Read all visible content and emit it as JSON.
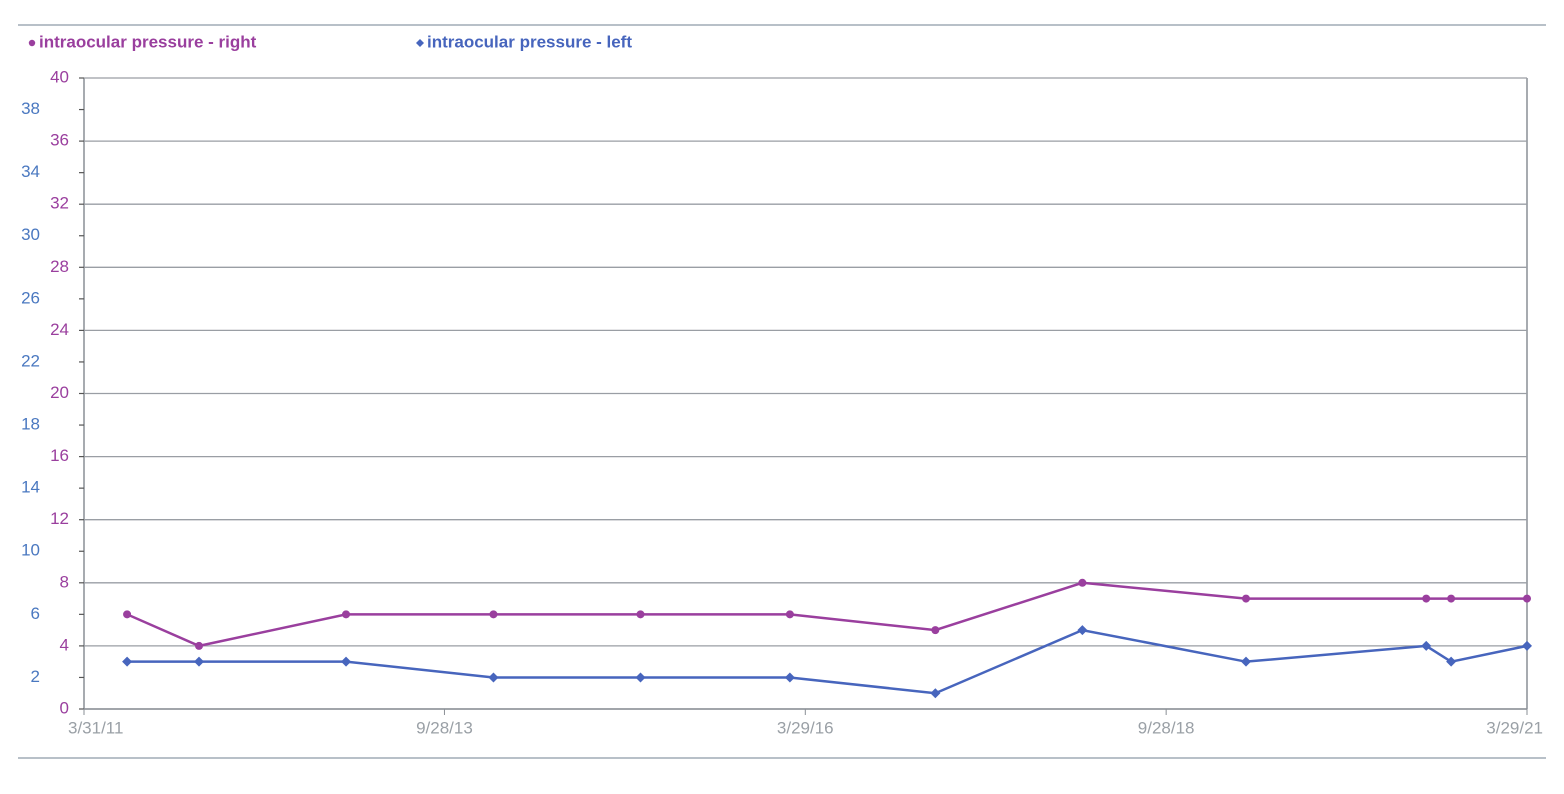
{
  "chart_data": {
    "type": "line",
    "x": [
      "7/18/11",
      "1/16/12",
      "1/22/13",
      "1/30/14",
      "2/6/15",
      "2/19/16",
      "2/21/17",
      "2/28/18",
      "4/18/19",
      "7/17/20",
      "9/18/20",
      "3/29/21"
    ],
    "series": [
      {
        "name": "intraocular pressure - right",
        "color": "#9a3f9e",
        "marker": "circle",
        "values": [
          6,
          4,
          6,
          6,
          6,
          6,
          5,
          8,
          7,
          7,
          7,
          7
        ]
      },
      {
        "name": "intraocular pressure - left",
        "color": "#4765bd",
        "marker": "diamond",
        "values": [
          3,
          3,
          3,
          2,
          2,
          2,
          1,
          5,
          3,
          4,
          3,
          4
        ]
      }
    ],
    "xlim": [
      "3/31/11",
      "3/29/21"
    ],
    "xticks": [
      "3/31/11",
      "9/28/13",
      "3/29/16",
      "9/28/18",
      "3/29/21"
    ],
    "ylim": [
      0,
      40
    ],
    "yticks": [
      0,
      2,
      4,
      6,
      8,
      10,
      12,
      14,
      16,
      18,
      20,
      22,
      24,
      26,
      28,
      30,
      32,
      34,
      36,
      38,
      40
    ],
    "ytick_colors": [
      "#9a3f9e",
      "#4a78c0"
    ],
    "grid": true
  }
}
